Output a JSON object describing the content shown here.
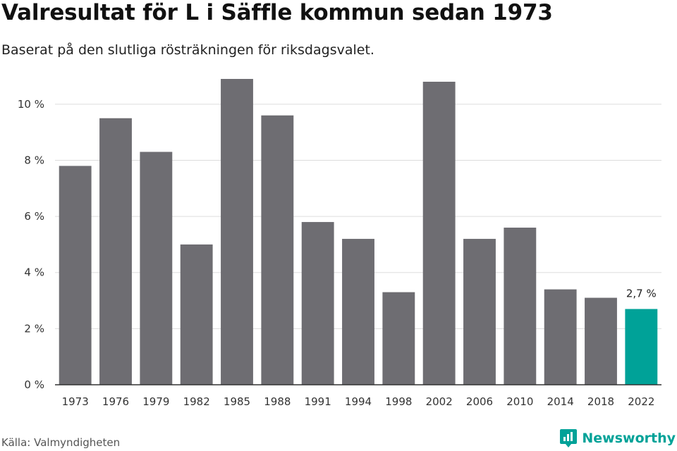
{
  "chart_data": {
    "type": "bar",
    "title": "Valresultat för L i Säffle kommun sedan 1973",
    "subtitle": "Baserat på den slutliga rösträkningen för riksdagsvalet.",
    "xlabel": "",
    "ylabel": "",
    "categories": [
      "1973",
      "1976",
      "1979",
      "1982",
      "1985",
      "1988",
      "1991",
      "1994",
      "1998",
      "2002",
      "2006",
      "2010",
      "2014",
      "2018",
      "2022"
    ],
    "values": [
      7.8,
      9.5,
      8.3,
      5.0,
      10.9,
      9.6,
      5.8,
      5.2,
      3.3,
      10.8,
      5.2,
      5.6,
      3.4,
      3.1,
      2.7
    ],
    "ylim": [
      0,
      10.9
    ],
    "yticks": [
      0,
      2,
      4,
      6,
      8,
      10
    ],
    "ytick_labels": [
      "0 %",
      "2 %",
      "4 %",
      "6 %",
      "8 %",
      "10 %"
    ],
    "grid": true,
    "legend": "none",
    "highlight_index": 14,
    "highlight_label": "2,7 %",
    "colors": {
      "bar": "#6e6d72",
      "highlight": "#00a298",
      "grid": "#dddddd",
      "axis": "#333333"
    }
  },
  "footer": {
    "source": "Källa: Valmyndigheten",
    "brand_name": "Newsworthy",
    "brand_icon": "newsworthy-logo-icon",
    "brand_color": "#00a298"
  }
}
